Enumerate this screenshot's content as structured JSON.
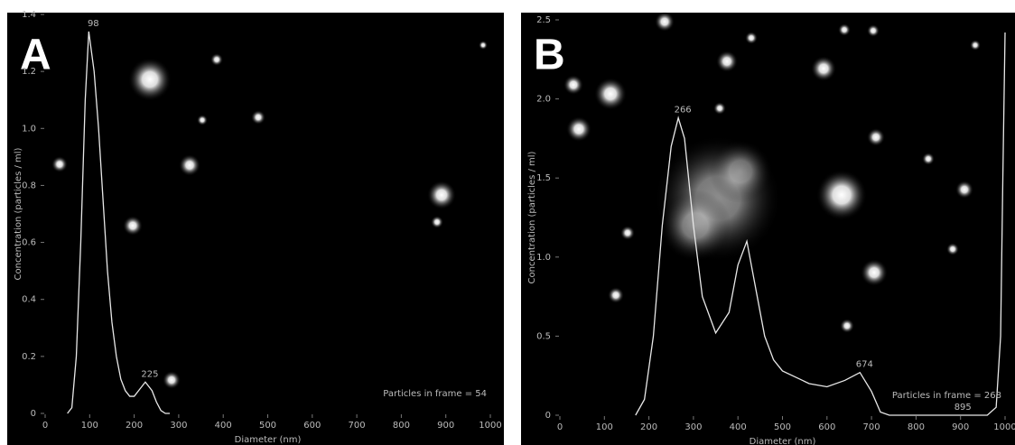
{
  "chart_data": [
    {
      "type": "line",
      "panel": "A",
      "xlabel": "Diameter (nm)",
      "ylabel": "Concentration (particles / ml)",
      "x": [
        50,
        60,
        70,
        80,
        90,
        98,
        110,
        120,
        130,
        140,
        150,
        160,
        170,
        180,
        190,
        200,
        210,
        225,
        240,
        250,
        260,
        270,
        280
      ],
      "values": [
        0,
        0.02,
        0.2,
        0.6,
        1.1,
        1.34,
        1.2,
        1.0,
        0.75,
        0.5,
        0.32,
        0.2,
        0.12,
        0.08,
        0.06,
        0.06,
        0.08,
        0.11,
        0.08,
        0.04,
        0.01,
        0,
        0
      ],
      "color": "#e8e8e8",
      "xlim": [
        0,
        1000
      ],
      "xticks": [
        0,
        100,
        200,
        300,
        400,
        500,
        600,
        700,
        800,
        900,
        1000
      ],
      "ylim": [
        0,
        1.4
      ],
      "yticks": [
        0,
        0.2,
        0.4,
        0.6,
        0.8,
        {
          "value": 1,
          "label": "1.0"
        },
        1.2,
        1.4
      ],
      "peak_labels": [
        {
          "value": 98,
          "label": "98"
        },
        {
          "value": 225,
          "label": "225"
        }
      ],
      "annotation": "Particles in frame = 54"
    },
    {
      "type": "line",
      "panel": "B",
      "xlabel": "Diameter (nm)",
      "ylabel": "Concentration (particles / ml)",
      "x": [
        170,
        190,
        210,
        230,
        250,
        266,
        280,
        300,
        320,
        350,
        380,
        400,
        420,
        440,
        460,
        480,
        500,
        530,
        560,
        600,
        640,
        674,
        700,
        720,
        740,
        960,
        980,
        990,
        995,
        1000
      ],
      "values": [
        0,
        0.1,
        0.5,
        1.2,
        1.7,
        1.88,
        1.75,
        1.2,
        0.75,
        0.52,
        0.65,
        0.95,
        1.1,
        0.8,
        0.5,
        0.35,
        0.28,
        0.24,
        0.2,
        0.18,
        0.22,
        0.27,
        0.15,
        0.02,
        0,
        0,
        0.05,
        0.5,
        1.5,
        2.42
      ],
      "color": "#e8e8e8",
      "xlim": [
        0,
        1000
      ],
      "xticks": [
        0,
        100,
        200,
        300,
        400,
        500,
        600,
        700,
        800,
        900,
        1000
      ],
      "ylim": [
        0,
        2.5
      ],
      "yticks": [
        0,
        0.5,
        {
          "value": 1,
          "label": "1.0"
        },
        1.5,
        {
          "value": 2,
          "label": "2.0"
        },
        2.5
      ],
      "peak_labels": [
        {
          "value": 266,
          "label": "266"
        },
        {
          "value": 674,
          "label": "674"
        },
        {
          "value": 895,
          "label": "895"
        }
      ],
      "annotation": "Particles in frame = 268"
    }
  ]
}
